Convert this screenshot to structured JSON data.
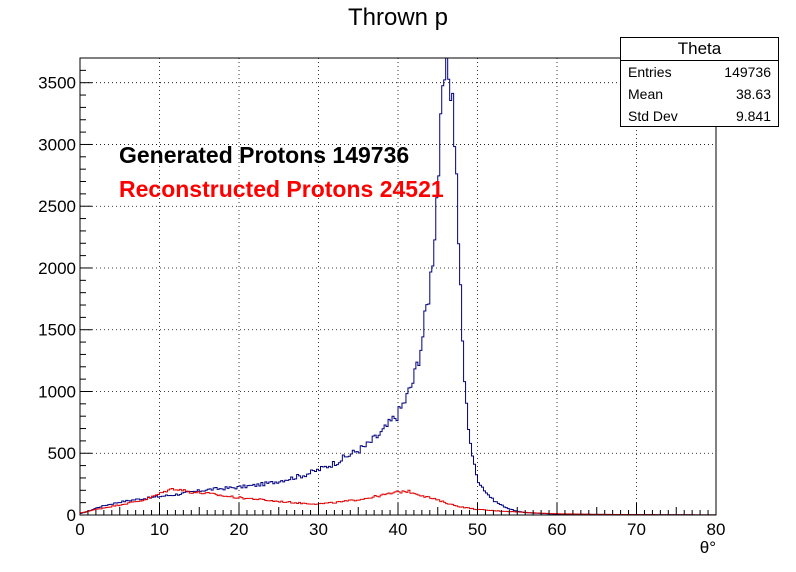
{
  "title": "Thrown p",
  "stats": {
    "name": "Theta",
    "rows": [
      {
        "label": "Entries",
        "value": "149736"
      },
      {
        "label": "Mean",
        "value": "38.63"
      },
      {
        "label": "Std Dev",
        "value": "9.841"
      }
    ]
  },
  "labels": {
    "generated": "Generated Protons 149736",
    "reconstructed": "Reconstructed Protons 24521"
  },
  "colors": {
    "generated": "#000080",
    "reconstructed": "#e00000",
    "generated_text": "#000000",
    "reconstructed_text": "#ff0000"
  },
  "chart_data": {
    "type": "histogram",
    "title": "Thrown p",
    "xlabel": "θ°",
    "ylabel": "",
    "xlim": [
      0,
      80
    ],
    "ylim": [
      0,
      3700
    ],
    "grid": true,
    "xticks": [
      0,
      10,
      20,
      30,
      40,
      50,
      60,
      70,
      80
    ],
    "yticks": [
      0,
      500,
      1000,
      1500,
      2000,
      2500,
      3000,
      3500
    ],
    "series": [
      {
        "name": "Generated Protons 149736",
        "color": "#000080",
        "points": [
          [
            0,
            10
          ],
          [
            1,
            30
          ],
          [
            2,
            55
          ],
          [
            3,
            75
          ],
          [
            5,
            105
          ],
          [
            7,
            125
          ],
          [
            9,
            140
          ],
          [
            10,
            150
          ],
          [
            12,
            165
          ],
          [
            14,
            185
          ],
          [
            16,
            205
          ],
          [
            18,
            215
          ],
          [
            20,
            225
          ],
          [
            22,
            240
          ],
          [
            24,
            260
          ],
          [
            26,
            290
          ],
          [
            28,
            320
          ],
          [
            30,
            365
          ],
          [
            32,
            420
          ],
          [
            34,
            490
          ],
          [
            36,
            560
          ],
          [
            38,
            670
          ],
          [
            40,
            820
          ],
          [
            41,
            940
          ],
          [
            42,
            1100
          ],
          [
            43,
            1400
          ],
          [
            44,
            1850
          ],
          [
            44.5,
            2200
          ],
          [
            45,
            2700
          ],
          [
            45.5,
            3200
          ],
          [
            46,
            3650
          ],
          [
            46.5,
            3580
          ],
          [
            47,
            3300
          ],
          [
            47.5,
            2500
          ],
          [
            48,
            1550
          ],
          [
            48.5,
            950
          ],
          [
            49,
            650
          ],
          [
            49.5,
            430
          ],
          [
            50,
            290
          ],
          [
            51,
            190
          ],
          [
            52,
            120
          ],
          [
            53,
            80
          ],
          [
            54,
            50
          ],
          [
            55,
            30
          ],
          [
            56,
            20
          ],
          [
            58,
            12
          ],
          [
            60,
            8
          ],
          [
            65,
            5
          ],
          [
            70,
            3
          ],
          [
            75,
            2
          ],
          [
            80,
            1
          ]
        ]
      },
      {
        "name": "Reconstructed Protons 24521",
        "color": "#e00000",
        "points": [
          [
            0,
            15
          ],
          [
            2,
            45
          ],
          [
            4,
            70
          ],
          [
            6,
            95
          ],
          [
            8,
            120
          ],
          [
            10,
            170
          ],
          [
            11,
            200
          ],
          [
            12,
            215
          ],
          [
            13,
            200
          ],
          [
            14,
            185
          ],
          [
            16,
            175
          ],
          [
            18,
            155
          ],
          [
            20,
            140
          ],
          [
            22,
            130
          ],
          [
            24,
            115
          ],
          [
            26,
            105
          ],
          [
            28,
            95
          ],
          [
            30,
            90
          ],
          [
            32,
            100
          ],
          [
            34,
            115
          ],
          [
            36,
            135
          ],
          [
            38,
            160
          ],
          [
            40,
            185
          ],
          [
            41,
            195
          ],
          [
            42,
            180
          ],
          [
            43,
            160
          ],
          [
            44,
            140
          ],
          [
            45,
            120
          ],
          [
            46,
            100
          ],
          [
            47,
            80
          ],
          [
            48,
            65
          ],
          [
            49,
            55
          ],
          [
            50,
            45
          ],
          [
            52,
            35
          ],
          [
            55,
            25
          ],
          [
            58,
            15
          ],
          [
            60,
            10
          ],
          [
            65,
            5
          ],
          [
            70,
            3
          ],
          [
            75,
            2
          ],
          [
            80,
            1
          ]
        ]
      }
    ]
  }
}
